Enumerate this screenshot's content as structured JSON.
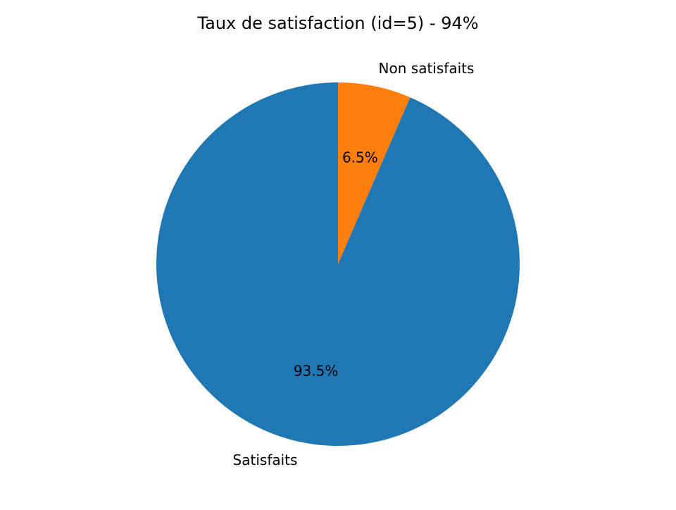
{
  "chart_data": {
    "type": "pie",
    "title": "Taux de satisfaction (id=5) - 94%",
    "start_angle_deg": 90,
    "direction": "clockwise",
    "slices": [
      {
        "label": "Non satisfaits",
        "value": 6.5,
        "pct_label": "6.5%",
        "color": "#ff7f0e"
      },
      {
        "label": "Satisfaits",
        "value": 93.5,
        "pct_label": "93.5%",
        "color": "#1f77b4"
      }
    ]
  }
}
